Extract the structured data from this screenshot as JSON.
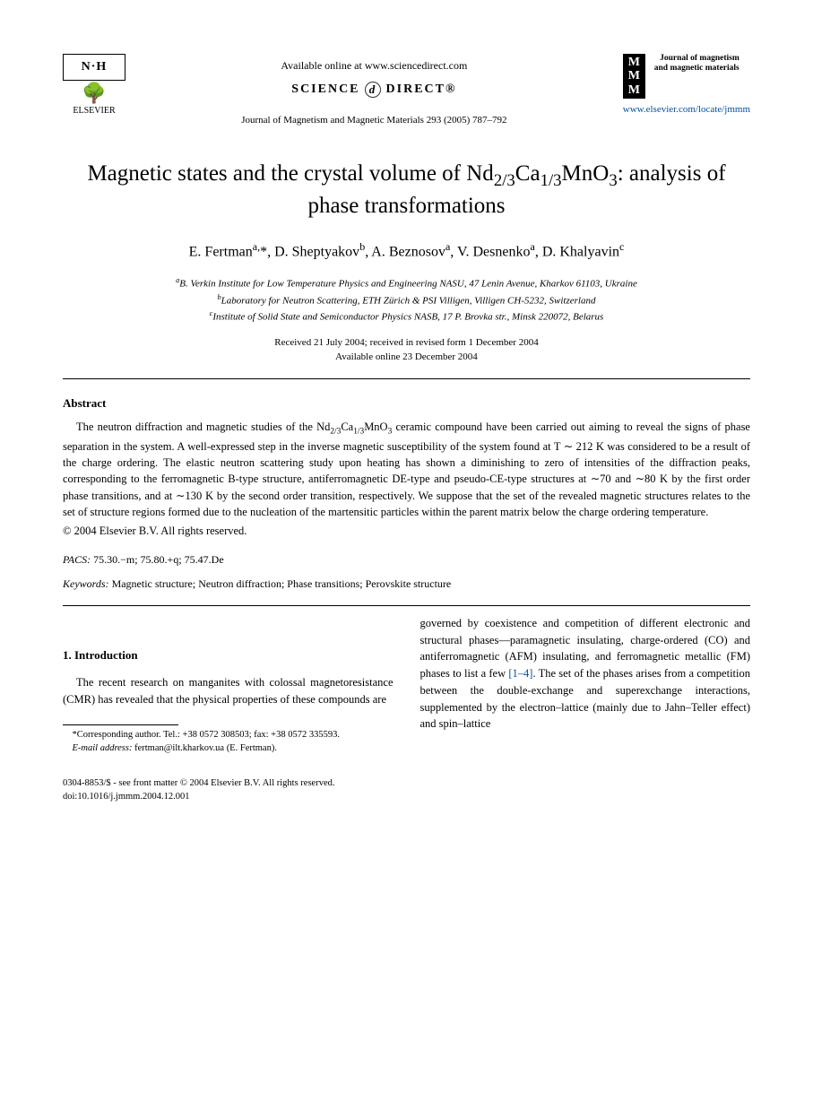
{
  "header": {
    "publisher_initials": "N·H",
    "publisher_name": "ELSEVIER",
    "available_online": "Available online at www.sciencedirect.com",
    "science_direct_left": "SCIENCE",
    "science_direct_right": "DIRECT®",
    "journal_reference": "Journal of Magnetism and Magnetic Materials 293 (2005) 787–792",
    "journal_logo_text": "MMM",
    "journal_full_name": "Journal of magnetism and magnetic materials",
    "journal_url": "www.elsevier.com/locate/jmmm"
  },
  "title_parts": {
    "pre": "Magnetic states and the crystal volume of Nd",
    "sub1": "2/3",
    "mid1": "Ca",
    "sub2": "1/3",
    "mid2": "MnO",
    "sub3": "3",
    "post": ": analysis of phase transformations"
  },
  "authors_html": "E. Fertman<sup>a,</sup>*, D. Sheptyakov<sup>b</sup>, A. Beznosov<sup>a</sup>, V. Desnenko<sup>a</sup>, D. Khalyavin<sup>c</sup>",
  "affiliations": {
    "a": "B. Verkin Institute for Low Temperature Physics and Engineering NASU, 47 Lenin Avenue, Kharkov 61103, Ukraine",
    "b": "Laboratory for Neutron Scattering, ETH Zürich & PSI Villigen, Villigen CH-5232, Switzerland",
    "c": "Institute of Solid State and Semiconductor Physics NASB, 17 P. Brovka str., Minsk 220072, Belarus"
  },
  "dates": {
    "received": "Received 21 July 2004; received in revised form 1 December 2004",
    "online": "Available online 23 December 2004"
  },
  "abstract": {
    "heading": "Abstract",
    "text_pre": "The neutron diffraction and magnetic studies of the Nd",
    "text_post": " ceramic compound have been carried out aiming to reveal the signs of phase separation in the system. A well-expressed step in the inverse magnetic susceptibility of the system found at T ∼ 212 K was considered to be a result of the charge ordering. The elastic neutron scattering study upon heating has shown a diminishing to zero of intensities of the diffraction peaks, corresponding to the ferromagnetic B-type structure, antiferromagnetic DE-type and pseudo-CE-type structures at ∼70 and ∼80 K by the first order phase transitions, and at ∼130 K by the second order transition, respectively. We suppose that the set of the revealed magnetic structures relates to the set of structure regions formed due to the nucleation of the martensitic particles within the parent matrix below the charge ordering temperature.",
    "copyright": "© 2004 Elsevier B.V. All rights reserved."
  },
  "pacs": {
    "label": "PACS:",
    "value": "75.30.−m; 75.80.+q; 75.47.De"
  },
  "keywords": {
    "label": "Keywords:",
    "value": "Magnetic structure; Neutron diffraction; Phase transitions; Perovskite structure"
  },
  "introduction": {
    "heading": "1. Introduction",
    "col1": "The recent research on manganites with colossal magnetoresistance (CMR) has revealed that the physical properties of these compounds are",
    "col2_pre": "governed by coexistence and competition of different electronic and structural phases—paramagnetic insulating, charge-ordered (CO) and antiferromagnetic (AFM) insulating, and ferromagnetic metallic (FM) phases to list a few ",
    "col2_ref": "[1–4]",
    "col2_post": ". The set of the phases arises from a competition between the double-exchange and superexchange interactions, supplemented by the electron–lattice (mainly due to Jahn–Teller effect) and spin–lattice"
  },
  "footnote": {
    "corresponding": "*Corresponding author. Tel.: +38 0572 308503; fax: +38 0572 335593.",
    "email_label": "E-mail address:",
    "email": "fertman@ilt.kharkov.ua (E. Fertman)."
  },
  "footer": {
    "front_matter": "0304-8853/$ - see front matter © 2004 Elsevier B.V. All rights reserved.",
    "doi": "doi:10.1016/j.jmmm.2004.12.001"
  },
  "colors": {
    "text": "#000000",
    "link": "#0050a0",
    "background": "#ffffff"
  }
}
